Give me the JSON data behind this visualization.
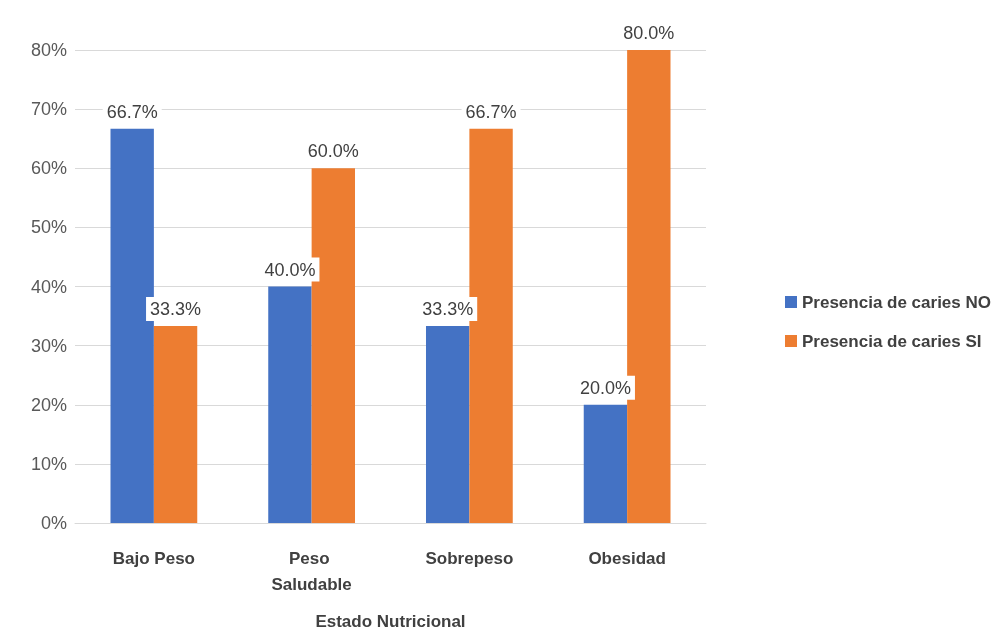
{
  "chart_data": {
    "type": "bar",
    "xlabel": "Estado Nutricional",
    "categories": [
      "Bajo Peso",
      "Peso Saludable",
      "Sobrepeso",
      "Obesidad"
    ],
    "series": [
      {
        "name": "Presencia de caries NO",
        "color": "#4472c4",
        "values": [
          66.7,
          40.0,
          33.3,
          20.0
        ],
        "value_labels": [
          "66.7%",
          "40.0%",
          "33.3%",
          "20.0%"
        ]
      },
      {
        "name": "Presencia de caries SI",
        "color": "#ed7d31",
        "values": [
          33.3,
          60.0,
          66.7,
          80.0
        ],
        "value_labels": [
          "33.3%",
          "60.0%",
          "66.7%",
          "80.0%"
        ]
      }
    ],
    "ylim": [
      0,
      80
    ],
    "yticks": [
      {
        "value": 0,
        "label": "0%"
      },
      {
        "value": 10,
        "label": "10%"
      },
      {
        "value": 20,
        "label": "20%"
      },
      {
        "value": 30,
        "label": "30%"
      },
      {
        "value": 40,
        "label": "40%"
      },
      {
        "value": 50,
        "label": "50%"
      },
      {
        "value": 60,
        "label": "60%"
      },
      {
        "value": 70,
        "label": "70%"
      },
      {
        "value": 80,
        "label": "80%"
      }
    ],
    "grid": "y",
    "legend": "right"
  }
}
